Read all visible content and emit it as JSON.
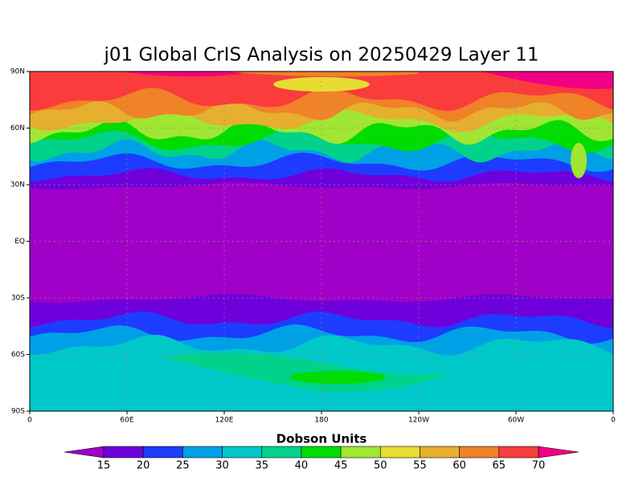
{
  "title": "j01 Global CrIS Analysis on 20250429 Layer 11",
  "x_tick_labels": [
    "0",
    "60E",
    "120E",
    "180",
    "120W",
    "60W",
    "0"
  ],
  "y_tick_labels": [
    "90N",
    "60N",
    "30N",
    "EQ",
    "30S",
    "60S",
    "90S"
  ],
  "colorbar": {
    "title": "Dobson Units",
    "levels": [
      15,
      20,
      25,
      30,
      35,
      40,
      45,
      50,
      55,
      60,
      65,
      70
    ],
    "colors": [
      "#a000c8",
      "#6e00dc",
      "#1e3cff",
      "#00a0e6",
      "#00c8c8",
      "#00d28c",
      "#00dc00",
      "#a0e632",
      "#e6dc32",
      "#e6af2d",
      "#f08228",
      "#fa3c3c",
      "#f00082"
    ]
  }
}
